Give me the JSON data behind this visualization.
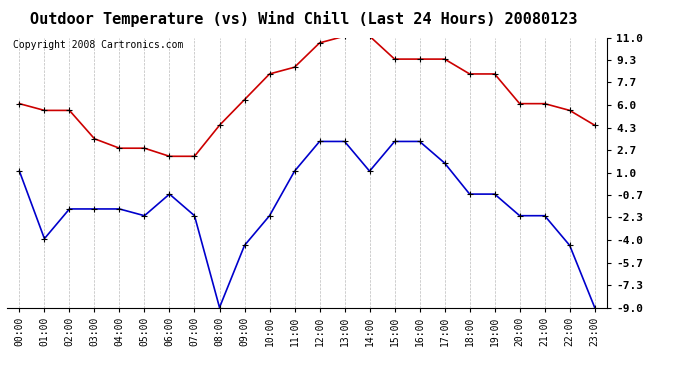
{
  "title": "Outdoor Temperature (vs) Wind Chill (Last 24 Hours) 20080123",
  "copyright": "Copyright 2008 Cartronics.com",
  "x_labels": [
    "00:00",
    "01:00",
    "02:00",
    "03:00",
    "04:00",
    "05:00",
    "06:00",
    "07:00",
    "08:00",
    "09:00",
    "10:00",
    "11:00",
    "12:00",
    "13:00",
    "14:00",
    "15:00",
    "16:00",
    "17:00",
    "18:00",
    "19:00",
    "20:00",
    "21:00",
    "22:00",
    "23:00"
  ],
  "red_data": [
    6.1,
    5.6,
    5.6,
    3.5,
    2.8,
    2.8,
    2.2,
    2.2,
    4.5,
    6.4,
    8.3,
    8.8,
    10.6,
    11.1,
    11.1,
    9.4,
    9.4,
    9.4,
    8.3,
    8.3,
    6.1,
    6.1,
    5.6,
    4.5
  ],
  "blue_data": [
    1.1,
    -3.9,
    -1.7,
    -1.7,
    -1.7,
    -2.2,
    -0.6,
    -2.2,
    -9.0,
    -4.4,
    -2.2,
    1.1,
    3.3,
    3.3,
    1.1,
    3.3,
    3.3,
    1.7,
    -0.6,
    -0.6,
    -2.2,
    -2.2,
    -4.4,
    -9.0
  ],
  "red_color": "#cc0000",
  "blue_color": "#0000cc",
  "yticks": [
    11.0,
    9.3,
    7.7,
    6.0,
    4.3,
    2.7,
    1.0,
    -0.7,
    -2.3,
    -4.0,
    -5.7,
    -7.3,
    -9.0
  ],
  "ymin": -9.0,
  "ymax": 11.0,
  "background_color": "#ffffff",
  "grid_color": "#bbbbbb",
  "title_fontsize": 11,
  "copyright_fontsize": 7,
  "tick_fontsize": 7
}
